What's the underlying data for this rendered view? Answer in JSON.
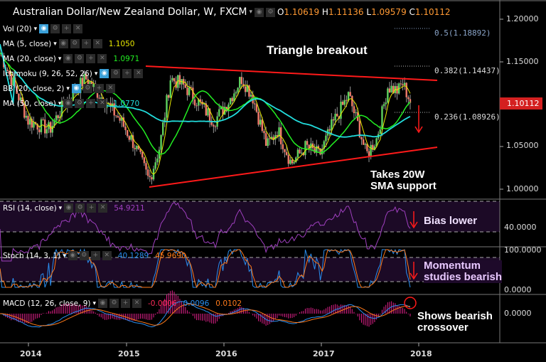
{
  "header": {
    "title": "Australian Dollar/New Zealand Dollar, W, FXCM",
    "open_label": "O",
    "open": "1.10619",
    "high_label": "H",
    "high": "1.11136",
    "low_label": "L",
    "low": "1.09579",
    "close_label": "C",
    "close": "1.10112"
  },
  "indicators": [
    {
      "label": "Vol (20)",
      "value": "",
      "color": "#ffffff"
    },
    {
      "label": "MA (5, close)",
      "value": "1.1050",
      "color": "#e8e800"
    },
    {
      "label": "MA (20, close)",
      "value": "1.0971",
      "color": "#22ee22"
    },
    {
      "label": "Ichimoku (9, 26, 52, 26)",
      "value": "",
      "color": "#ffffff"
    },
    {
      "label": "BB (20, close, 2)",
      "value": "",
      "color": "#ffffff"
    },
    {
      "label": "MA (50, close)",
      "value": "1.0770",
      "color": "#22dddd"
    }
  ],
  "rsi": {
    "label": "RSI (14, close)",
    "value": "54.9211",
    "color": "#a040c0",
    "axis": "40.0000"
  },
  "stoch": {
    "label": "Stoch (14, 3, 1)",
    "k": "40.1289",
    "d": "45.9690",
    "axis_top": "100.0000",
    "axis_bottom": "0.0000"
  },
  "macd": {
    "label": "MACD (12, 26, close, 9)",
    "hist": "-0.0006",
    "macd": "0.0096",
    "signal": "0.0102",
    "axis": "0.0000"
  },
  "price_axis": [
    "1.20000",
    "1.15000",
    "1.10000",
    "1.05000",
    "1.00000"
  ],
  "current_price": "1.10112",
  "fib": [
    {
      "label": "0.5(1.18892)",
      "color": "#8aa4c8"
    },
    {
      "label": "0.382(1.14437)",
      "color": "#dddddd"
    },
    {
      "label": "0.236(1.08926)",
      "color": "#dddddd"
    }
  ],
  "annotations": {
    "triangle": "Triangle breakout",
    "support_1": "Takes 20W",
    "support_2": "SMA support",
    "bias": "Bias lower",
    "momentum_1": "Momentum",
    "momentum_2": "studies bearish",
    "macd_1": "Shows bearish",
    "macd_2": "crossover"
  },
  "time_axis": [
    "2014",
    "2015",
    "2016",
    "2017",
    "2018"
  ],
  "chart_data": {
    "type": "candlestick",
    "ylim": [
      0.99,
      1.22
    ],
    "path_year": [
      2013.7,
      2013.85,
      2013.99,
      2014.21,
      2014.36,
      2014.58,
      2014.8,
      2014.94,
      2015.09,
      2015.23,
      2015.34,
      2015.45,
      2015.6,
      2015.75,
      2015.9,
      2016.03,
      2016.18,
      2016.29,
      2016.44,
      2016.55,
      2016.69,
      2016.84,
      2016.98,
      2017.13,
      2017.28,
      2017.39,
      2017.46,
      2017.57,
      2017.68,
      2017.79,
      2017.83,
      2017.92
    ],
    "path_close": [
      1.16,
      1.12,
      1.08,
      1.07,
      1.1,
      1.13,
      1.1,
      1.08,
      1.05,
      1.01,
      1.05,
      1.13,
      1.12,
      1.1,
      1.08,
      1.1,
      1.13,
      1.11,
      1.05,
      1.07,
      1.03,
      1.05,
      1.04,
      1.08,
      1.11,
      1.07,
      1.04,
      1.06,
      1.12,
      1.115,
      1.125,
      1.101
    ]
  }
}
